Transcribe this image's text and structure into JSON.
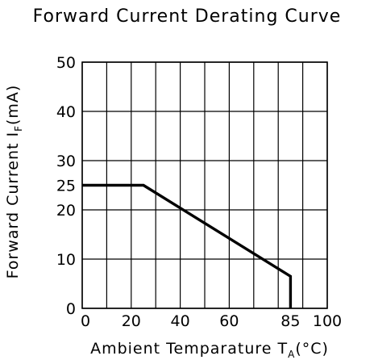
{
  "chart_data": {
    "type": "line",
    "title": "Forward Current Derating Curve",
    "xlabel": {
      "text": "Ambient Temparature T",
      "sub": "A",
      "unit": "(°C)"
    },
    "ylabel": {
      "text": "Forward Current I",
      "sub": "F",
      "unit": "(mA)"
    },
    "x_ticks": [
      0,
      20,
      40,
      60,
      85,
      100
    ],
    "y_ticks": [
      0,
      10,
      20,
      25,
      30,
      40,
      50
    ],
    "xlim": [
      0,
      100
    ],
    "ylim": [
      0,
      50
    ],
    "grid": true,
    "series": [
      {
        "x": [
          0,
          25,
          85,
          85
        ],
        "y": [
          25,
          25,
          6.5,
          0
        ]
      }
    ]
  }
}
